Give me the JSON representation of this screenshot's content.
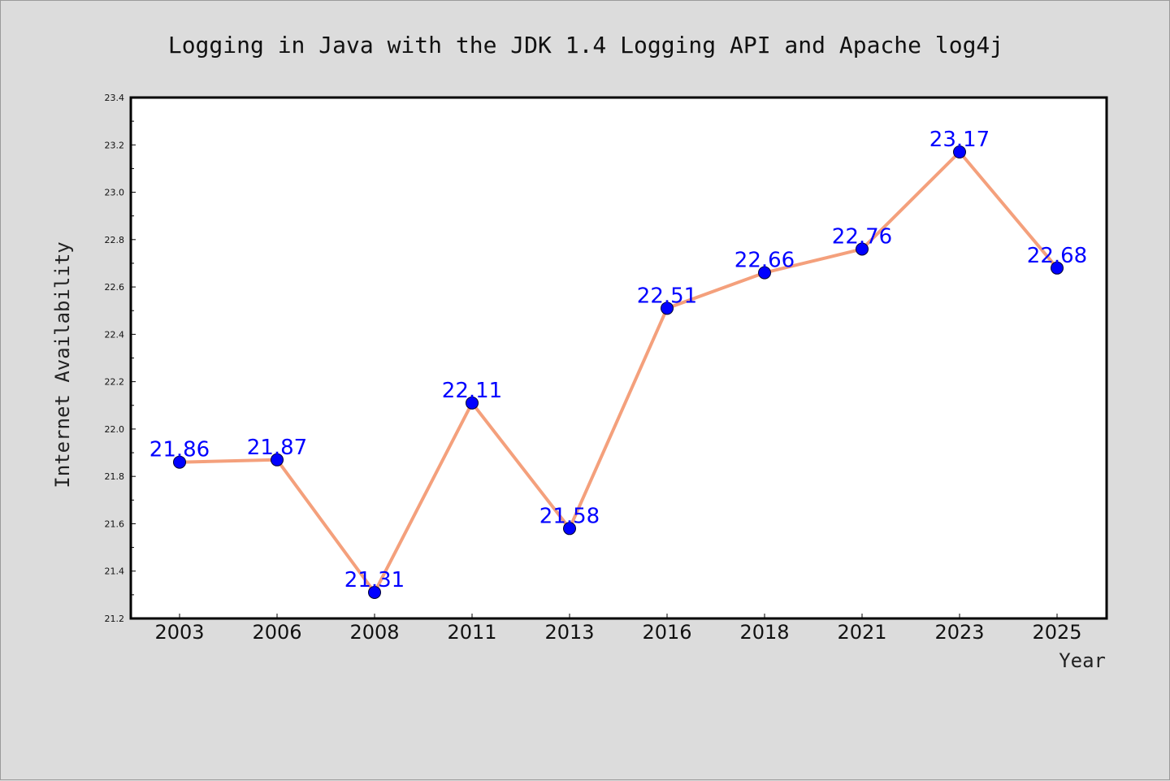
{
  "chart_data": {
    "type": "line",
    "title": "Logging in Java with the JDK 1.4 Logging API and Apache log4j",
    "xlabel": "Year",
    "ylabel": "Internet Availability",
    "categories": [
      "2003",
      "2006",
      "2008",
      "2011",
      "2013",
      "2016",
      "2018",
      "2021",
      "2023",
      "2025"
    ],
    "series": [
      {
        "values": [
          21.86,
          21.87,
          21.31,
          22.11,
          21.58,
          22.51,
          22.66,
          22.76,
          23.17,
          22.68
        ],
        "data_labels": [
          "21.86",
          "21.87",
          "21.31",
          "22.11",
          "21.58",
          "22.51",
          "22.66",
          "22.76",
          "23.17",
          "22.68"
        ]
      }
    ],
    "ylim": [
      21.2,
      23.4
    ],
    "yticks": [
      "21.2",
      "21.4",
      "21.6",
      "21.8",
      "22.0",
      "22.2",
      "22.4",
      "22.6",
      "22.8",
      "23.0",
      "23.2",
      "23.4"
    ],
    "grid": false,
    "colors": {
      "line": "#f4a07c",
      "marker": "#0000ff",
      "data_label": "#0000ff",
      "background": "#dcdcdc",
      "plot_background": "#ffffff"
    }
  }
}
